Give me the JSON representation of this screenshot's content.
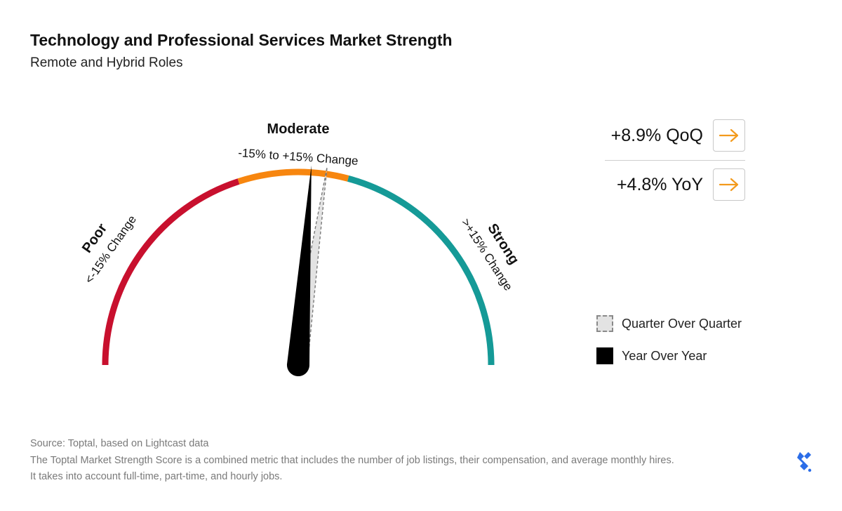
{
  "chart_data": {
    "type": "gauge",
    "title": "Technology and Professional Services Market Strength",
    "subtitle": "Remote and Hybrid Roles",
    "zones": [
      {
        "name": "Poor",
        "range_label": "<-15% Change",
        "color": "#c8102e"
      },
      {
        "name": "Moderate",
        "range_label": "-15% to +15% Change",
        "color": "#f7860f"
      },
      {
        "name": "Strong",
        "range_label": ">+15% Change",
        "color": "#159a97"
      }
    ],
    "series": [
      {
        "name": "Quarter Over Quarter",
        "value": 8.9,
        "label": "+8.9% QoQ",
        "color": "#e3e3e3"
      },
      {
        "name": "Year Over Year",
        "value": 4.8,
        "label": "+4.8% YoY",
        "color": "#000000"
      }
    ],
    "legend": {
      "placement": "right",
      "items": [
        "Quarter Over Quarter",
        "Year Over Year"
      ]
    }
  },
  "header": {
    "title": "Technology and Professional Services Market Strength",
    "subtitle": "Remote and Hybrid Roles"
  },
  "stats": {
    "qoq": "+8.9% QoQ",
    "yoy": "+4.8% YoY",
    "arrow_color": "#f39a1c"
  },
  "footer": {
    "source": "Source: Toptal, based on Lightcast data",
    "note_line1": "The Toptal Market Strength Score is a combined metric that includes the number of job listings, their compensation, and average monthly hires.",
    "note_line2": "It takes into account full-time, part-time, and hourly jobs."
  },
  "icons": {
    "logo": "toptal-logo-icon",
    "arrow": "arrow-right-icon"
  },
  "colors": {
    "logo": "#2b6de8"
  }
}
